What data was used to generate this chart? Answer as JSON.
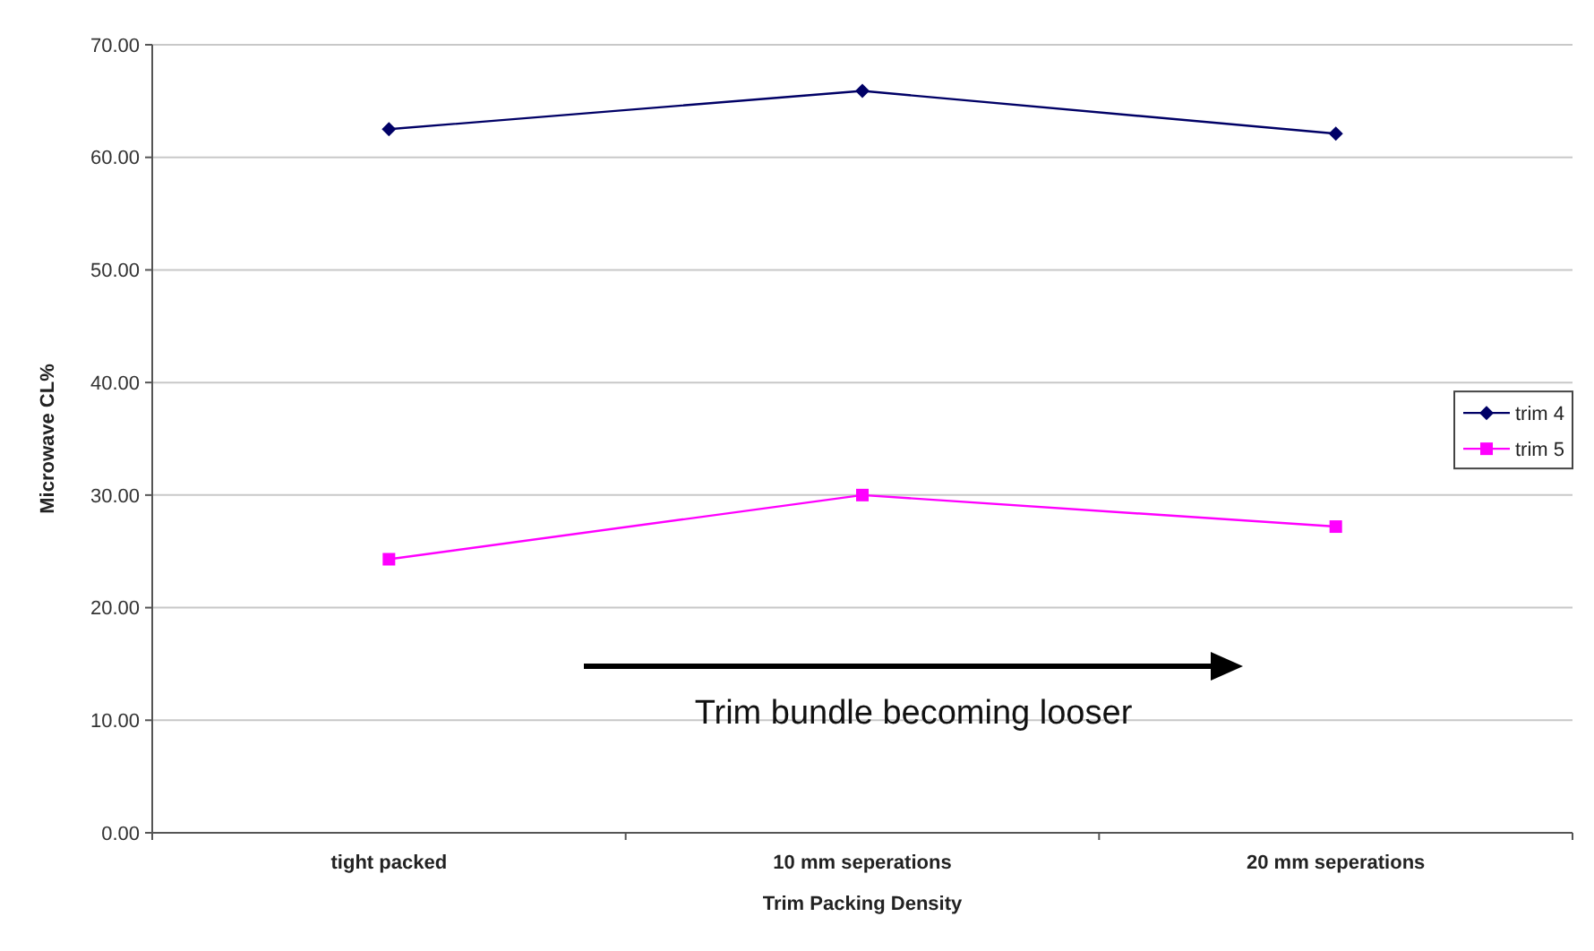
{
  "chart_data": {
    "type": "line",
    "xlabel": "Trim Packing Density",
    "ylabel": "Microwave CL%",
    "categories": [
      "tight packed",
      "10 mm seperations",
      "20 mm seperations"
    ],
    "series": [
      {
        "name": "trim 4",
        "color": "#000066",
        "values": [
          62.5,
          65.9,
          62.1
        ],
        "marker": "diamond"
      },
      {
        "name": "trim 5",
        "color": "#ff00ff",
        "values": [
          24.3,
          30.0,
          27.2
        ],
        "marker": "square"
      }
    ],
    "ylim": [
      0,
      70
    ],
    "yticks": [
      {
        "value": 0,
        "label": "0.00"
      },
      {
        "value": 10,
        "label": "10.00"
      },
      {
        "value": 20,
        "label": "20.00"
      },
      {
        "value": 30,
        "label": "30.00"
      },
      {
        "value": 40,
        "label": "40.00"
      },
      {
        "value": 50,
        "label": "50.00"
      },
      {
        "value": 60,
        "label": "60.00"
      },
      {
        "value": 70,
        "label": "70.00"
      }
    ],
    "grid": "y",
    "legend": "right",
    "annotations": [
      "Trim bundle becoming looser"
    ]
  }
}
